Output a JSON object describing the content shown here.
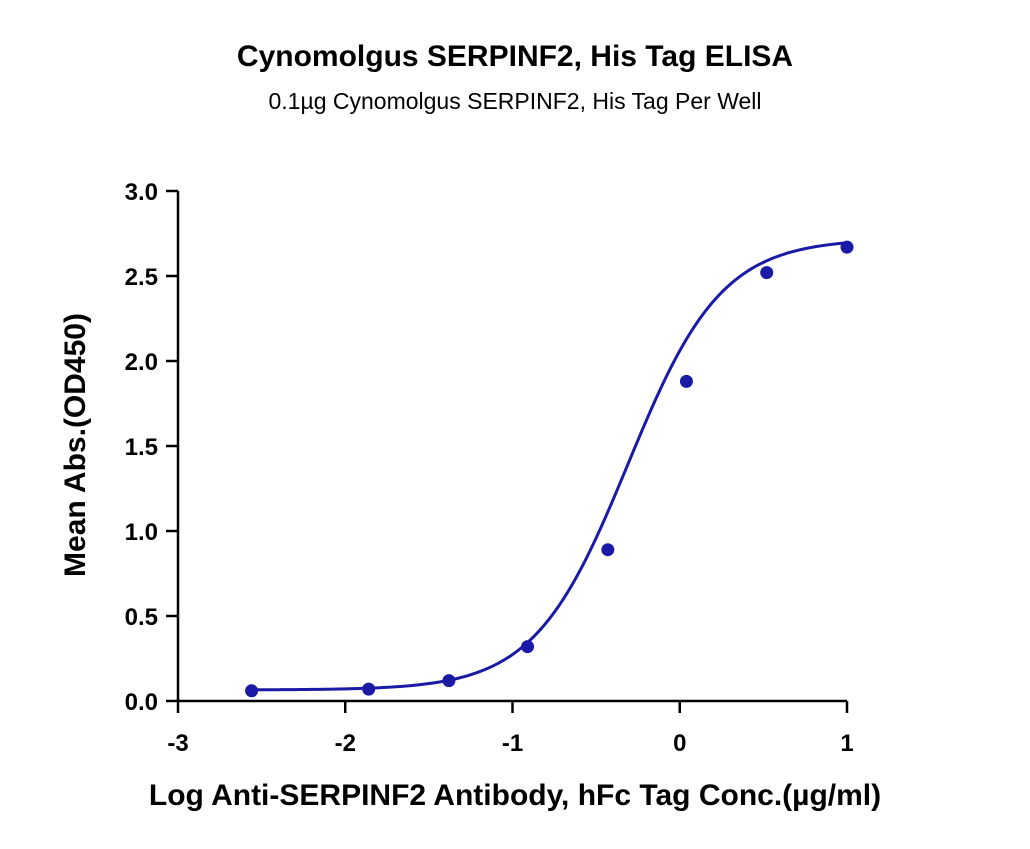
{
  "chart_data": {
    "type": "scatter",
    "title": "Cynomolgus SERPINF2, His Tag ELISA",
    "subtitle": "0.1µg Cynomolgus SERPINF2, His Tag Per Well",
    "xlabel": "Log Anti-SERPINF2 Antibody, hFc Tag Conc.(µg/ml)",
    "ylabel": "Mean Abs.(OD450)",
    "xlim": [
      -3,
      1
    ],
    "ylim": [
      0,
      3
    ],
    "x_ticks": [
      "-3",
      "-2",
      "-1",
      "0",
      "1"
    ],
    "y_ticks": [
      "0.0",
      "0.5",
      "1.0",
      "1.5",
      "2.0",
      "2.5",
      "3.0"
    ],
    "grid": false,
    "color": "#1a1aa6",
    "series": [
      {
        "x": [
          -2.56,
          -1.86,
          -1.38,
          -0.91,
          -0.43,
          0.04,
          0.52,
          1.0
        ],
        "y": [
          0.06,
          0.07,
          0.12,
          0.32,
          0.89,
          1.88,
          2.52,
          2.67
        ],
        "fit": "four-parameter logistic curve"
      }
    ]
  }
}
